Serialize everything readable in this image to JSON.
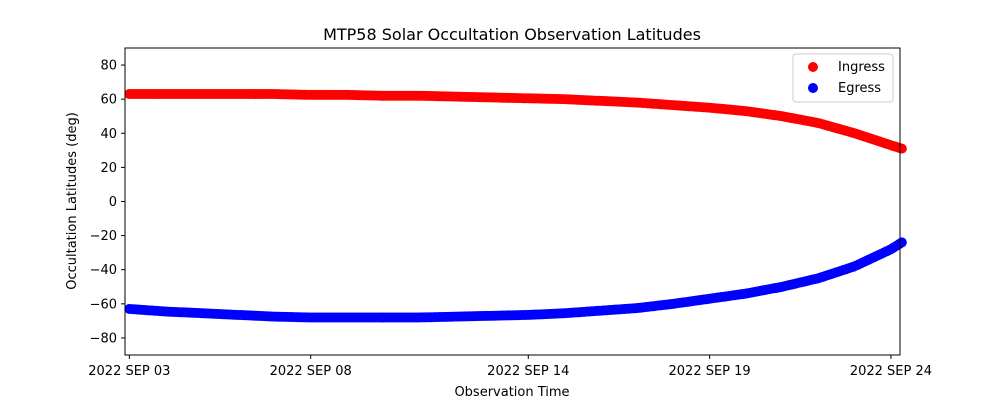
{
  "chart_data": {
    "type": "scatter",
    "title": "MTP58 Solar Occultation Observation Latitudes",
    "xlabel": "Observation Time",
    "ylabel": "Occultation Latitudes (deg)",
    "ylim": [
      -90,
      90
    ],
    "yticks": [
      -80,
      -60,
      -40,
      -20,
      0,
      20,
      40,
      60,
      80
    ],
    "xlim_day": [
      2.88,
      24.25
    ],
    "xticks": [
      {
        "day": 3.0,
        "label": "2022 SEP 03"
      },
      {
        "day": 8.0,
        "label": "2022 SEP 08"
      },
      {
        "day": 14.0,
        "label": "2022 SEP 14"
      },
      {
        "day": 19.0,
        "label": "2022 SEP 19"
      },
      {
        "day": 24.0,
        "label": "2022 SEP 24"
      }
    ],
    "legend_position": "top-right",
    "series": [
      {
        "name": "Ingress",
        "color": "#ff0000",
        "points": [
          {
            "day": 3.0,
            "lat": 63
          },
          {
            "day": 4.0,
            "lat": 63
          },
          {
            "day": 5.0,
            "lat": 63
          },
          {
            "day": 6.0,
            "lat": 63
          },
          {
            "day": 7.0,
            "lat": 63
          },
          {
            "day": 8.0,
            "lat": 62.5
          },
          {
            "day": 9.0,
            "lat": 62.5
          },
          {
            "day": 10.0,
            "lat": 62
          },
          {
            "day": 11.0,
            "lat": 62
          },
          {
            "day": 12.0,
            "lat": 61.5
          },
          {
            "day": 13.0,
            "lat": 61
          },
          {
            "day": 14.0,
            "lat": 60.5
          },
          {
            "day": 15.0,
            "lat": 60
          },
          {
            "day": 16.0,
            "lat": 59
          },
          {
            "day": 17.0,
            "lat": 58
          },
          {
            "day": 18.0,
            "lat": 56.5
          },
          {
            "day": 19.0,
            "lat": 55
          },
          {
            "day": 20.0,
            "lat": 53
          },
          {
            "day": 21.0,
            "lat": 50
          },
          {
            "day": 22.0,
            "lat": 46
          },
          {
            "day": 23.0,
            "lat": 40
          },
          {
            "day": 24.0,
            "lat": 33
          },
          {
            "day": 24.3,
            "lat": 31
          }
        ]
      },
      {
        "name": "Egress",
        "color": "#0000ff",
        "points": [
          {
            "day": 3.0,
            "lat": -63
          },
          {
            "day": 4.0,
            "lat": -64.5
          },
          {
            "day": 5.0,
            "lat": -65.5
          },
          {
            "day": 6.0,
            "lat": -66.5
          },
          {
            "day": 7.0,
            "lat": -67.5
          },
          {
            "day": 8.0,
            "lat": -68
          },
          {
            "day": 9.0,
            "lat": -68
          },
          {
            "day": 10.0,
            "lat": -68
          },
          {
            "day": 11.0,
            "lat": -68
          },
          {
            "day": 12.0,
            "lat": -67.5
          },
          {
            "day": 13.0,
            "lat": -67
          },
          {
            "day": 14.0,
            "lat": -66.5
          },
          {
            "day": 15.0,
            "lat": -65.5
          },
          {
            "day": 16.0,
            "lat": -64
          },
          {
            "day": 17.0,
            "lat": -62.5
          },
          {
            "day": 18.0,
            "lat": -60
          },
          {
            "day": 19.0,
            "lat": -57
          },
          {
            "day": 20.0,
            "lat": -54
          },
          {
            "day": 21.0,
            "lat": -50
          },
          {
            "day": 22.0,
            "lat": -45
          },
          {
            "day": 23.0,
            "lat": -38
          },
          {
            "day": 24.0,
            "lat": -28
          },
          {
            "day": 24.3,
            "lat": -24
          }
        ]
      }
    ]
  }
}
